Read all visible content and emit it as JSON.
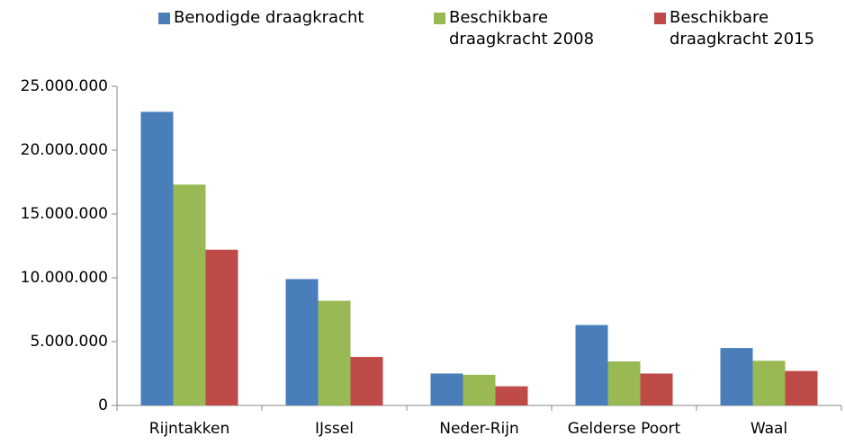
{
  "chart_data": {
    "type": "bar",
    "categories": [
      "Rijntakken",
      "IJssel",
      "Neder-Rijn",
      "Gelderse Poort",
      "Waal"
    ],
    "series": [
      {
        "name": "Benodigde draagkracht",
        "color": "#4a7ebb",
        "values": [
          23000000,
          9900000,
          2500000,
          6300000,
          4500000
        ]
      },
      {
        "name": "Beschikbare draagkracht 2008",
        "color": "#98b954",
        "values": [
          17300000,
          8200000,
          2400000,
          3450000,
          3500000
        ]
      },
      {
        "name": "Beschikbare draagkracht 2015",
        "color": "#be4b48",
        "values": [
          12200000,
          3800000,
          1500000,
          2500000,
          2700000
        ]
      }
    ],
    "ylim": [
      0,
      25000000
    ],
    "yticks": [
      0,
      {
        "value": 5000000,
        "label": "5.000.000"
      },
      {
        "value": 10000000,
        "label": "10.000.000"
      },
      {
        "value": 15000000,
        "label": "15.000.000"
      },
      {
        "value": 20000000,
        "label": "20.000.000"
      },
      {
        "value": 25000000,
        "label": "25.000.000"
      }
    ],
    "legend": "top"
  }
}
